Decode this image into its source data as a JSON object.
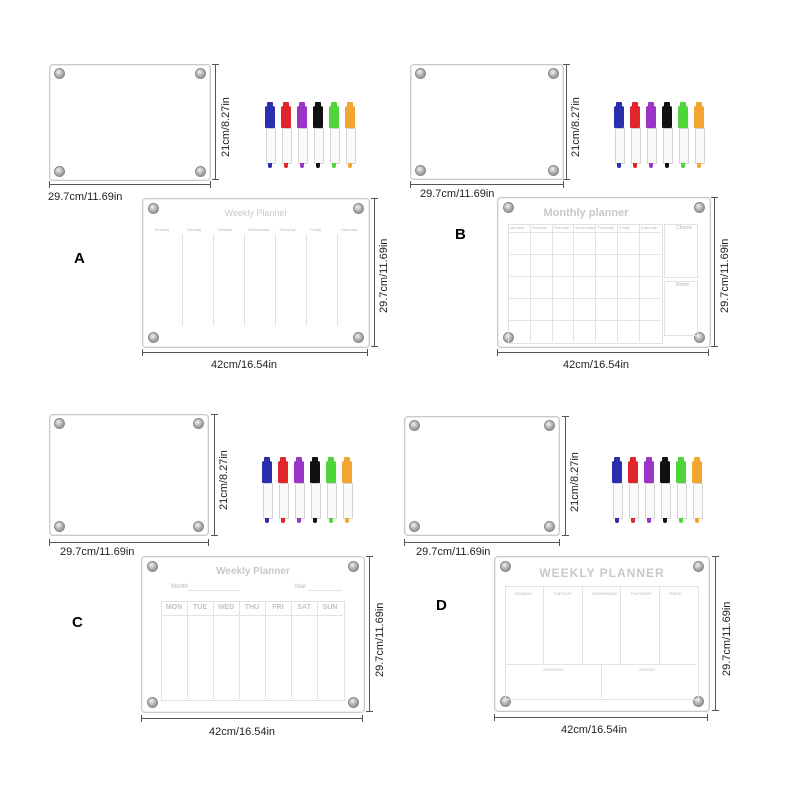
{
  "options": {
    "a": {
      "letter": "A",
      "small_width": "29.7cm/11.69in",
      "small_height": "21cm/8.27in",
      "large_width": "42cm/16.54in",
      "large_height": "29.7cm/11.69in",
      "planner_title": "Weekly Planner",
      "columns": [
        "Monday",
        "Tuesday",
        "Tuesday",
        "Wednesday",
        "Thursday",
        "Friday",
        "Saturday"
      ]
    },
    "b": {
      "letter": "B",
      "small_width": "29.7cm/11.69in",
      "small_height": "21cm/8.27in",
      "large_width": "42cm/16.54in",
      "large_height": "29.7cm/11.69in",
      "planner_title": "Monthly planner",
      "columns": [
        "Monday",
        "Tuesday",
        "Tuesday",
        "Wednesday",
        "Thursday",
        "Friday",
        "Saturday"
      ],
      "side_labels": [
        "Chores",
        "Notes"
      ]
    },
    "c": {
      "letter": "C",
      "small_width": "29.7cm/11.69in",
      "small_height": "21cm/8.27in",
      "large_width": "42cm/16.54in",
      "large_height": "29.7cm/11.69in",
      "planner_title": "Weekly Planner",
      "month_label": "Month",
      "year_label": "Year",
      "days": [
        "MON",
        "TUE",
        "WED",
        "THU",
        "FRI",
        "SAT",
        "SUN"
      ]
    },
    "d": {
      "letter": "D",
      "small_width": "29.7cm/11.69in",
      "small_height": "21cm/8.27in",
      "large_width": "42cm/16.54in",
      "large_height": "29.7cm/11.69in",
      "planner_title": "WEEKLY PLANNER",
      "top_labels": [
        "MONDAY",
        "TUESDAY",
        "WEDNESDAY",
        "THURSDAY",
        "FRIDAY"
      ],
      "bottom_labels": [
        "SATURDAY",
        "SUNDAY"
      ]
    }
  },
  "marker_colors": [
    "#2b2fae",
    "#e0262b",
    "#9a35c8",
    "#111111",
    "#4fd43a",
    "#f3a531"
  ]
}
